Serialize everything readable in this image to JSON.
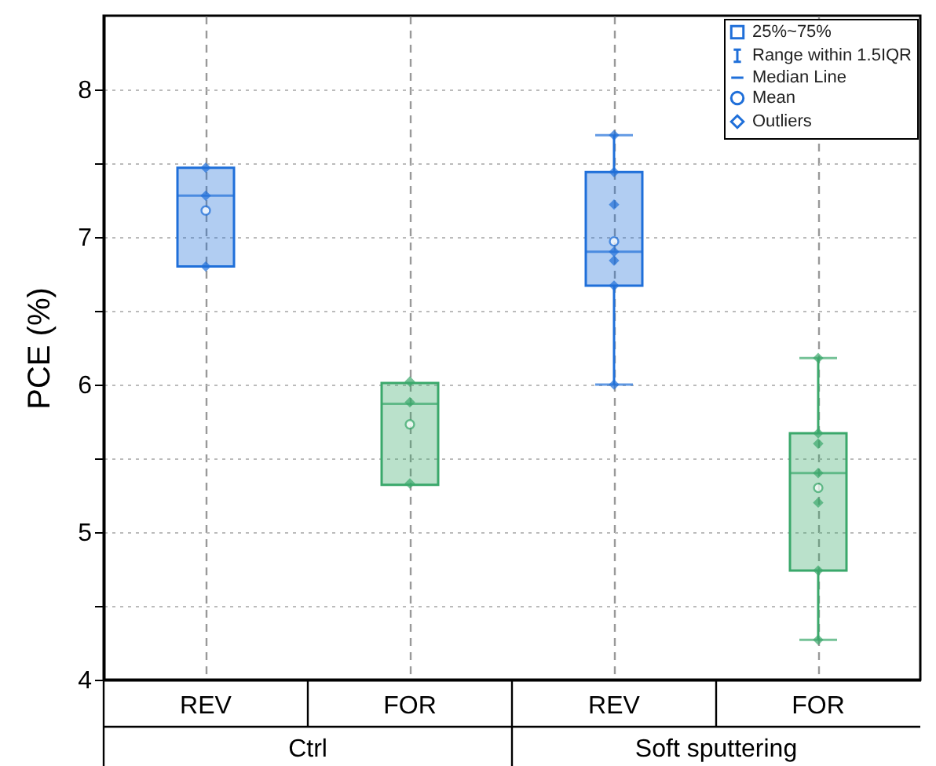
{
  "chart_data": {
    "type": "box",
    "ylabel": "PCE (%)",
    "categories": [
      "REV",
      "FOR",
      "REV",
      "FOR"
    ],
    "colors": [
      "#1f6fd9",
      "#3aa86b",
      "#1f6fd9",
      "#3aa86b"
    ],
    "boxes": [
      {
        "low": 6.8,
        "q1": 6.8,
        "median": 7.28,
        "q3": 7.47,
        "high": 7.47,
        "mean": 7.18,
        "outliers": [
          7.47,
          7.28,
          6.8
        ]
      },
      {
        "low": 5.32,
        "q1": 5.32,
        "median": 5.87,
        "q3": 6.01,
        "high": 6.01,
        "mean": 5.73,
        "outliers": [
          6.02,
          5.88,
          5.33
        ]
      },
      {
        "low": 6.0,
        "q1": 6.67,
        "median": 6.9,
        "q3": 7.44,
        "high": 7.69,
        "mean": 6.97,
        "outliers": [
          7.69,
          7.44,
          7.22,
          6.9,
          6.84,
          6.67,
          6.0
        ]
      },
      {
        "low": 4.27,
        "q1": 4.74,
        "median": 5.4,
        "q3": 5.67,
        "high": 6.18,
        "mean": 5.3,
        "outliers": [
          6.18,
          5.67,
          5.6,
          5.4,
          5.2,
          4.74,
          4.27
        ]
      }
    ],
    "ylim": [
      4,
      8.5
    ],
    "yticks": [
      4,
      {
        "value": 4.5,
        "label": null
      },
      5,
      {
        "value": 5.5,
        "label": null
      },
      6,
      {
        "value": 6.5,
        "label": null
      },
      7,
      {
        "value": 7.5,
        "label": null
      },
      8
    ],
    "grid": true,
    "annotations": [
      "Ctrl",
      "Soft sputtering",
      "25%~75%",
      "Range within 1.5IQR",
      "Median Line",
      "Mean",
      "Outliers"
    ]
  }
}
